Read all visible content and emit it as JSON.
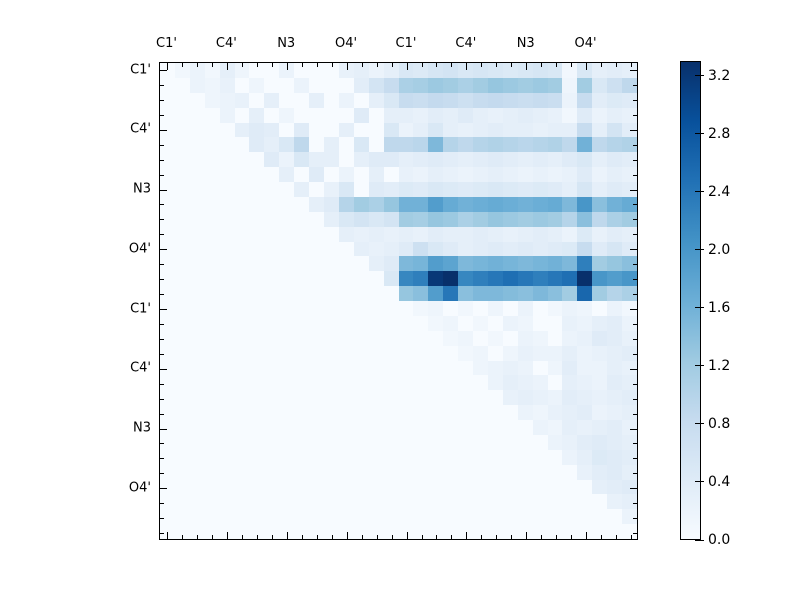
{
  "figure": {
    "background_color": "#ffffff",
    "frame_color": "#000000",
    "title": ""
  },
  "chart_data": {
    "type": "heatmap",
    "title": "",
    "xlabel": "",
    "ylabel": "",
    "n_rows": 32,
    "n_cols": 32,
    "cells_per_group": 4,
    "x_group_labels": [
      "C1'",
      "C4'",
      "N3",
      "O4'",
      "C1'",
      "C4'",
      "N3",
      "O4'"
    ],
    "y_group_labels": [
      "C1'",
      "C4'",
      "N3",
      "O4'",
      "C1'",
      "C4'",
      "N3",
      "O4'"
    ],
    "colormap": "Blues",
    "colormap_stops": {
      "positions": [
        0,
        0.125,
        0.25,
        0.375,
        0.5,
        0.625,
        0.75,
        0.875,
        1.0
      ],
      "colors": [
        "#f7fbff",
        "#deebf7",
        "#c6dbef",
        "#9ecae1",
        "#6baed6",
        "#4292c6",
        "#2171b5",
        "#08519c",
        "#08306b"
      ]
    },
    "vmin": 0.0,
    "vmax": 3.3,
    "colorbar_tick_labels": [
      "0.0",
      "0.4",
      "0.8",
      "1.2",
      "1.6",
      "2.0",
      "2.4",
      "2.8",
      "3.2"
    ],
    "colorbar_tick_values": [
      0.0,
      0.4,
      0.8,
      1.2,
      1.6,
      2.0,
      2.4,
      2.8,
      3.2
    ],
    "legend": "colorbar-right",
    "grid": false,
    "matrix": [
      [
        0,
        0.1,
        0.2,
        0.1,
        0.3,
        0.15,
        0,
        0,
        0.2,
        0,
        0,
        0,
        0.25,
        0.3,
        0.2,
        0.3,
        0.5,
        0.45,
        0.55,
        0.6,
        0.5,
        0.55,
        0.5,
        0.45,
        0.5,
        0.55,
        0.5,
        0.1,
        0.5,
        0.3,
        0.35,
        0.3
      ],
      [
        0,
        0,
        0.2,
        0.15,
        0.25,
        0,
        0.15,
        0,
        0,
        0.2,
        0,
        0,
        0,
        0.35,
        0.6,
        0.8,
        1.1,
        1.15,
        1.25,
        1.2,
        1.1,
        1.2,
        1.3,
        1.25,
        1.2,
        1.25,
        1.2,
        0.15,
        1.2,
        0.5,
        0.7,
        0.9
      ],
      [
        0,
        0,
        0,
        0.15,
        0.2,
        0.25,
        0,
        0.3,
        0,
        0,
        0.3,
        0,
        0.2,
        0,
        0.3,
        0.5,
        0.8,
        0.75,
        0.85,
        0.8,
        0.7,
        0.8,
        0.85,
        0.8,
        0.75,
        0.8,
        0.75,
        0.2,
        0.8,
        0.35,
        0.45,
        0.4
      ],
      [
        0,
        0,
        0,
        0,
        0.2,
        0,
        0.3,
        0,
        0.15,
        0,
        0,
        0,
        0,
        0.4,
        0,
        0.3,
        0.3,
        0.25,
        0.35,
        0.3,
        0.4,
        0.3,
        0.25,
        0.3,
        0.35,
        0.3,
        0.25,
        0.1,
        0.4,
        0.2,
        0.3,
        0.25
      ],
      [
        0,
        0,
        0,
        0,
        0,
        0.3,
        0.4,
        0.35,
        0,
        0.4,
        0,
        0,
        0.3,
        0,
        0,
        0.5,
        0.2,
        0.3,
        0.5,
        0.3,
        0.25,
        0.3,
        0.35,
        0.3,
        0.3,
        0.25,
        0.3,
        0.3,
        0.8,
        0.3,
        0.6,
        0.35
      ],
      [
        0,
        0,
        0,
        0,
        0,
        0,
        0.4,
        0.3,
        0.5,
        0.9,
        0,
        0.3,
        0,
        0.5,
        0,
        0.9,
        0.9,
        0.95,
        1.5,
        1.0,
        0.9,
        1.0,
        1.05,
        1.0,
        0.95,
        1.0,
        1.05,
        0.9,
        1.6,
        0.9,
        1.0,
        1.05
      ],
      [
        0,
        0,
        0,
        0,
        0,
        0,
        0,
        0.4,
        0.2,
        0.5,
        0.3,
        0.3,
        0,
        0.3,
        0.4,
        0.4,
        0.3,
        0.35,
        0.4,
        0.35,
        0.3,
        0.35,
        0.4,
        0.35,
        0.3,
        0.35,
        0.3,
        0.4,
        0.5,
        0.3,
        0.4,
        0.35
      ],
      [
        0,
        0,
        0,
        0,
        0,
        0,
        0,
        0,
        0.3,
        0,
        0.4,
        0,
        0.2,
        0,
        0.3,
        0,
        0.25,
        0.2,
        0.3,
        0.25,
        0.2,
        0.25,
        0.3,
        0.25,
        0.2,
        0.25,
        0.2,
        0.25,
        0.4,
        0.2,
        0.3,
        0.25
      ],
      [
        0,
        0,
        0,
        0,
        0,
        0,
        0,
        0,
        0,
        0.3,
        0,
        0.25,
        0.5,
        0,
        0.4,
        0.35,
        0.45,
        0.4,
        0.5,
        0.45,
        0.4,
        0.45,
        0.5,
        0.45,
        0.4,
        0.45,
        0.4,
        0.3,
        0.55,
        0.3,
        0.4,
        0.35
      ],
      [
        0,
        0,
        0,
        0,
        0,
        0,
        0,
        0,
        0,
        0,
        0.3,
        0.4,
        1.0,
        1.2,
        1.1,
        1.3,
        1.6,
        1.6,
        1.9,
        1.7,
        1.6,
        1.65,
        1.7,
        1.65,
        1.6,
        1.65,
        1.7,
        1.5,
        2.0,
        1.4,
        1.6,
        1.7
      ],
      [
        0,
        0,
        0,
        0,
        0,
        0,
        0,
        0,
        0,
        0,
        0,
        0.3,
        0.5,
        0.6,
        0.5,
        0.6,
        1.2,
        1.15,
        1.3,
        1.25,
        1.1,
        1.2,
        1.3,
        1.25,
        1.2,
        1.25,
        1.2,
        1.0,
        1.4,
        0.9,
        1.1,
        1.2
      ],
      [
        0,
        0,
        0,
        0,
        0,
        0,
        0,
        0,
        0,
        0,
        0,
        0,
        0.3,
        0.25,
        0.3,
        0.25,
        0.3,
        0.25,
        0.35,
        0.3,
        0.3,
        0.35,
        0.3,
        0.25,
        0.3,
        0.35,
        0.3,
        0.2,
        0.45,
        0.25,
        0.35,
        0.3
      ],
      [
        0,
        0,
        0,
        0,
        0,
        0,
        0,
        0,
        0,
        0,
        0,
        0,
        0,
        0.3,
        0.25,
        0.3,
        0.4,
        0.7,
        0.5,
        0.4,
        0.3,
        0.35,
        0.4,
        0.35,
        0.4,
        0.35,
        0.4,
        0.45,
        0.8,
        0.4,
        0.55,
        0.4
      ],
      [
        0,
        0,
        0,
        0,
        0,
        0,
        0,
        0,
        0,
        0,
        0,
        0,
        0,
        0,
        0.3,
        0.4,
        1.5,
        1.55,
        1.9,
        1.8,
        1.5,
        1.55,
        1.6,
        1.55,
        1.5,
        1.55,
        1.6,
        1.5,
        2.3,
        1.2,
        1.3,
        1.4
      ],
      [
        0,
        0,
        0,
        0,
        0,
        0,
        0,
        0,
        0,
        0,
        0,
        0,
        0,
        0,
        0,
        0.5,
        2.2,
        2.3,
        3.2,
        3.3,
        2.2,
        2.3,
        2.4,
        2.5,
        2.4,
        2.3,
        2.4,
        2.5,
        3.3,
        2.0,
        1.9,
        2.0
      ],
      [
        0,
        0,
        0,
        0,
        0,
        0,
        0,
        0,
        0,
        0,
        0,
        0,
        0,
        0,
        0,
        0,
        1.3,
        1.4,
        1.9,
        2.4,
        1.4,
        1.5,
        1.5,
        1.45,
        1.4,
        1.5,
        1.4,
        1.2,
        2.6,
        1.2,
        1.0,
        1.1
      ],
      [
        0,
        0,
        0,
        0,
        0,
        0,
        0,
        0,
        0,
        0,
        0,
        0,
        0,
        0,
        0,
        0,
        0,
        0.1,
        0.15,
        0,
        0.1,
        0,
        0.15,
        0,
        0.2,
        0,
        0.1,
        0.2,
        0.15,
        0,
        0.2,
        0.1
      ],
      [
        0,
        0,
        0,
        0,
        0,
        0,
        0,
        0,
        0,
        0,
        0,
        0,
        0,
        0,
        0,
        0,
        0,
        0,
        0.1,
        0.15,
        0,
        0.1,
        0,
        0.2,
        0.15,
        0,
        0,
        0.25,
        0.2,
        0.3,
        0.35,
        0.2
      ],
      [
        0,
        0,
        0,
        0,
        0,
        0,
        0,
        0,
        0,
        0,
        0,
        0,
        0,
        0,
        0,
        0,
        0,
        0,
        0,
        0.1,
        0.15,
        0,
        0.1,
        0,
        0.2,
        0.15,
        0,
        0.2,
        0.25,
        0.4,
        0.35,
        0.25
      ],
      [
        0,
        0,
        0,
        0,
        0,
        0,
        0,
        0,
        0,
        0,
        0,
        0,
        0,
        0,
        0,
        0,
        0,
        0,
        0,
        0,
        0.1,
        0.15,
        0,
        0.15,
        0.25,
        0.2,
        0.2,
        0.3,
        0.2,
        0.25,
        0.3,
        0.35
      ],
      [
        0,
        0,
        0,
        0,
        0,
        0,
        0,
        0,
        0,
        0,
        0,
        0,
        0,
        0,
        0,
        0,
        0,
        0,
        0,
        0,
        0,
        0.15,
        0.2,
        0.25,
        0.2,
        0,
        0.15,
        0.35,
        0.2,
        0.2,
        0.3,
        0.25
      ],
      [
        0,
        0,
        0,
        0,
        0,
        0,
        0,
        0,
        0,
        0,
        0,
        0,
        0,
        0,
        0,
        0,
        0,
        0,
        0,
        0,
        0,
        0,
        0.2,
        0.3,
        0.25,
        0.2,
        0,
        0.3,
        0.25,
        0.2,
        0.35,
        0.3
      ],
      [
        0,
        0,
        0,
        0,
        0,
        0,
        0,
        0,
        0,
        0,
        0,
        0,
        0,
        0,
        0,
        0,
        0,
        0,
        0,
        0,
        0,
        0,
        0,
        0.25,
        0.3,
        0.25,
        0.2,
        0.35,
        0.3,
        0.25,
        0.3,
        0.35
      ],
      [
        0,
        0,
        0,
        0,
        0,
        0,
        0,
        0,
        0,
        0,
        0,
        0,
        0,
        0,
        0,
        0,
        0,
        0,
        0,
        0,
        0,
        0,
        0,
        0,
        0.2,
        0.15,
        0.25,
        0.3,
        0.35,
        0.2,
        0.25,
        0.3
      ],
      [
        0,
        0,
        0,
        0,
        0,
        0,
        0,
        0,
        0,
        0,
        0,
        0,
        0,
        0,
        0,
        0,
        0,
        0,
        0,
        0,
        0,
        0,
        0,
        0,
        0,
        0.2,
        0.15,
        0.3,
        0.25,
        0.3,
        0.35,
        0.25
      ],
      [
        0,
        0,
        0,
        0,
        0,
        0,
        0,
        0,
        0,
        0,
        0,
        0,
        0,
        0,
        0,
        0,
        0,
        0,
        0,
        0,
        0,
        0,
        0,
        0,
        0,
        0,
        0.2,
        0.25,
        0.35,
        0.4,
        0.35,
        0.3
      ],
      [
        0,
        0,
        0,
        0,
        0,
        0,
        0,
        0,
        0,
        0,
        0,
        0,
        0,
        0,
        0,
        0,
        0,
        0,
        0,
        0,
        0,
        0,
        0,
        0,
        0,
        0,
        0,
        0.2,
        0.3,
        0.45,
        0.4,
        0.35
      ],
      [
        0,
        0,
        0,
        0,
        0,
        0,
        0,
        0,
        0,
        0,
        0,
        0,
        0,
        0,
        0,
        0,
        0,
        0,
        0,
        0,
        0,
        0,
        0,
        0,
        0,
        0,
        0,
        0,
        0.25,
        0.35,
        0.4,
        0.3
      ],
      [
        0,
        0,
        0,
        0,
        0,
        0,
        0,
        0,
        0,
        0,
        0,
        0,
        0,
        0,
        0,
        0,
        0,
        0,
        0,
        0,
        0,
        0,
        0,
        0,
        0,
        0,
        0,
        0,
        0,
        0.3,
        0.35,
        0.4
      ],
      [
        0,
        0,
        0,
        0,
        0,
        0,
        0,
        0,
        0,
        0,
        0,
        0,
        0,
        0,
        0,
        0,
        0,
        0,
        0,
        0,
        0,
        0,
        0,
        0,
        0,
        0,
        0,
        0,
        0,
        0,
        0.25,
        0.3
      ],
      [
        0,
        0,
        0,
        0,
        0,
        0,
        0,
        0,
        0,
        0,
        0,
        0,
        0,
        0,
        0,
        0,
        0,
        0,
        0,
        0,
        0,
        0,
        0,
        0,
        0,
        0,
        0,
        0,
        0,
        0,
        0,
        0.2
      ],
      [
        0,
        0,
        0,
        0,
        0,
        0,
        0,
        0,
        0,
        0,
        0,
        0,
        0,
        0,
        0,
        0,
        0,
        0,
        0,
        0,
        0,
        0,
        0,
        0,
        0,
        0,
        0,
        0,
        0,
        0,
        0,
        0
      ]
    ]
  }
}
